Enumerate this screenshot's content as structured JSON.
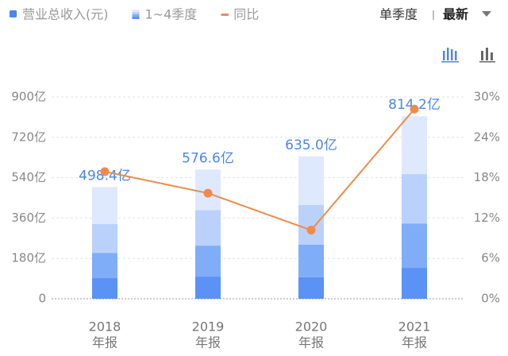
{
  "controls": {
    "period": "单季度",
    "order": "最新"
  },
  "chart_data": {
    "type": "stacked-bar-line",
    "categories": [
      [
        "2018",
        "年报"
      ],
      [
        "2019",
        "年报"
      ],
      [
        "2020",
        "年报"
      ],
      [
        "2021",
        "年报"
      ]
    ],
    "series": [
      {
        "name": "营业总收入(元)",
        "color": "#4a86f0",
        "values": [
          498.4,
          576.6,
          635.0,
          814.2
        ],
        "value_labels": [
          "498.4亿",
          "576.6亿",
          "635.0亿",
          "814.2亿"
        ]
      },
      {
        "name": "1~4季度",
        "colors": [
          "#5a92f6",
          "#80adf8",
          "#bad1fb",
          "#dfe9fd"
        ],
        "values": [
          [
            92,
            113,
            128,
            165.4
          ],
          [
            99,
            138,
            159,
            180.6
          ],
          [
            96,
            145,
            177,
            217
          ],
          [
            138,
            198,
            220,
            258.2
          ]
        ]
      },
      {
        "name": "同比",
        "color": "#f08a4b",
        "axis": "y2",
        "values": [
          18.9,
          15.7,
          10.2,
          28.2
        ]
      }
    ],
    "ylim": [
      0,
      900
    ],
    "yticks": [
      0,
      {
        "value": 180,
        "label": "180亿"
      },
      {
        "value": 360,
        "label": "360亿"
      },
      {
        "value": 540,
        "label": "540亿"
      },
      {
        "value": 720,
        "label": "720亿"
      },
      {
        "value": 900,
        "label": "900亿"
      }
    ],
    "y2lim": [
      0,
      30
    ],
    "y2ticks": [
      {
        "value": 0,
        "label": "0%"
      },
      {
        "value": 6,
        "label": "6%"
      },
      {
        "value": 12,
        "label": "12%"
      },
      {
        "value": 18,
        "label": "18%"
      },
      {
        "value": 24,
        "label": "24%"
      },
      {
        "value": 30,
        "label": "30%"
      }
    ],
    "grid": true
  }
}
